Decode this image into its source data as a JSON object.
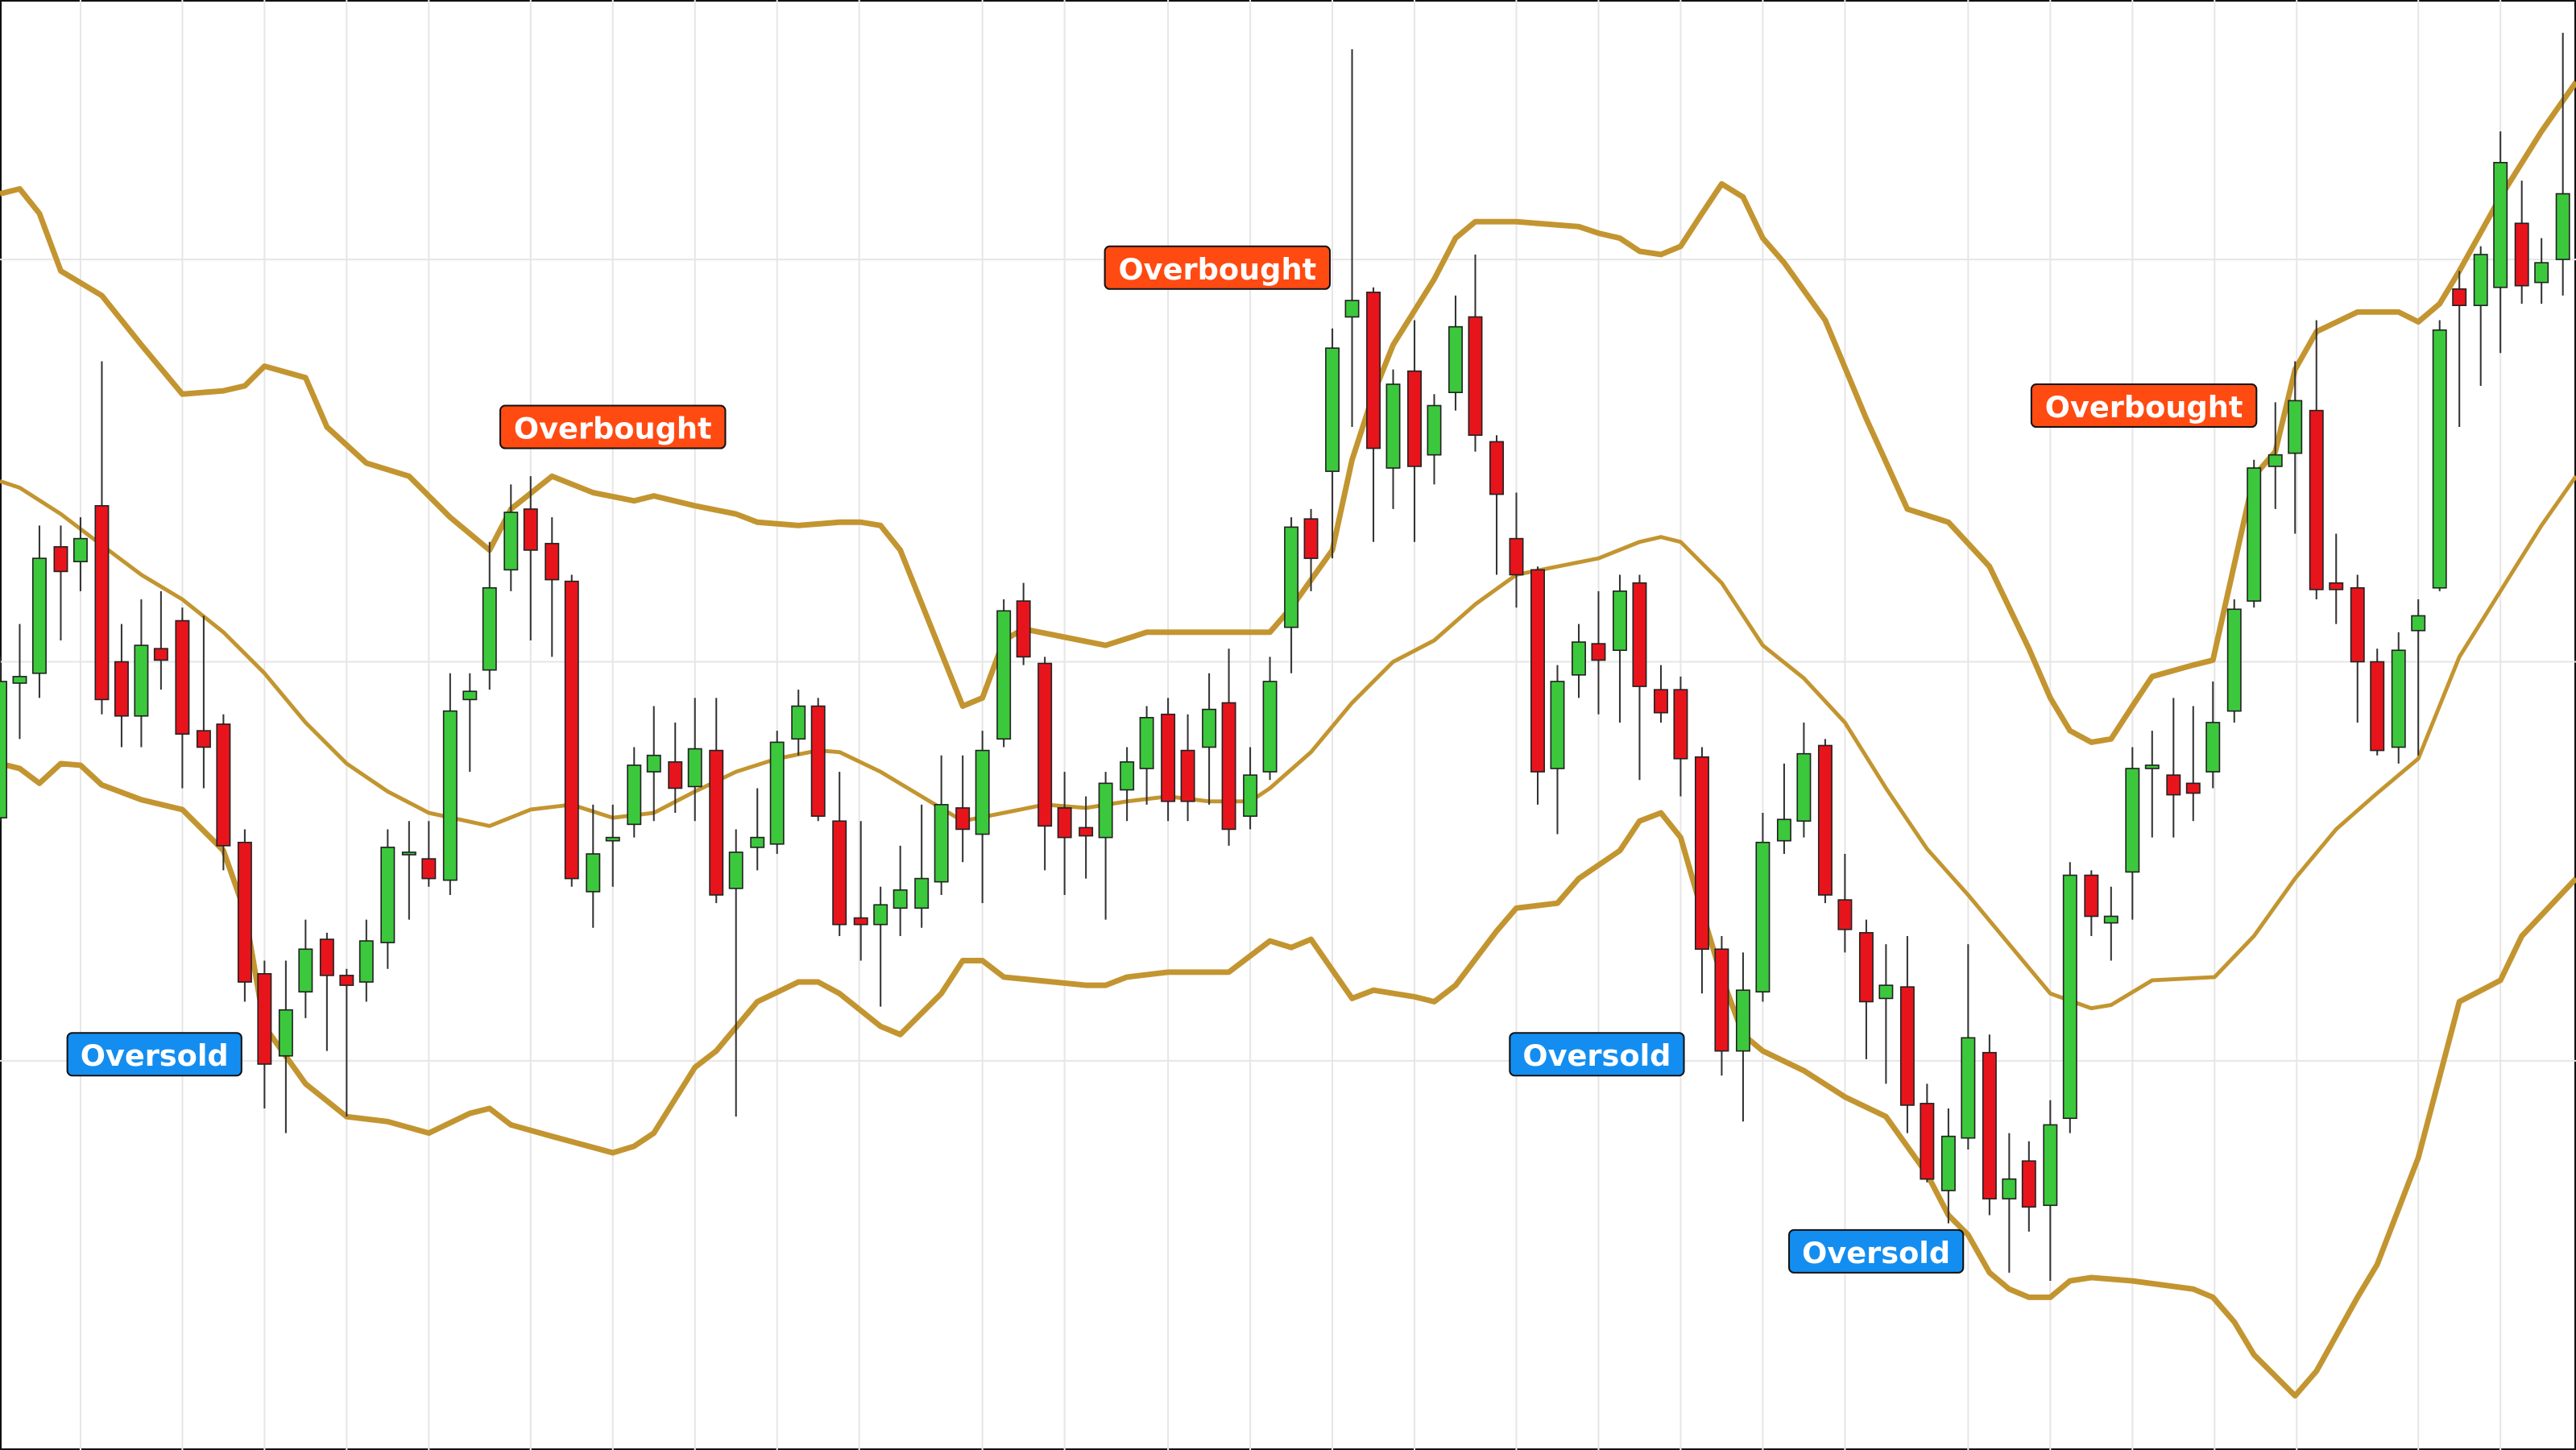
{
  "chart_data": {
    "type": "candlestick",
    "xlim": [
      0,
      1568
    ],
    "ylim": [
      0,
      883
    ],
    "grid": true,
    "xticks": [
      49,
      111,
      161,
      211,
      261,
      323,
      373,
      423,
      473,
      523,
      598,
      648,
      711,
      761,
      811,
      861,
      923,
      973,
      1023,
      1073,
      1123,
      1198,
      1248,
      1298,
      1348,
      1398,
      1472,
      1522
    ],
    "yticks": [
      237,
      480,
      725
    ],
    "up_color": "#3cc83c",
    "down_color": "#e8141c",
    "candles": {
      "x": [
        0,
        12,
        24,
        37,
        49,
        62,
        74,
        86,
        98,
        111,
        124,
        136,
        149,
        161,
        174,
        186,
        199,
        211,
        223,
        236,
        249,
        261,
        274,
        286,
        298,
        311,
        323,
        336,
        348,
        361,
        373,
        386,
        398,
        411,
        423,
        436,
        448,
        461,
        473,
        486,
        498,
        511,
        524,
        536,
        548,
        561,
        573,
        586,
        598,
        611,
        623,
        636,
        648,
        661,
        673,
        686,
        698,
        711,
        723,
        736,
        748,
        761,
        773,
        786,
        798,
        811,
        823,
        836,
        848,
        861,
        873,
        886,
        898,
        911,
        923,
        936,
        948,
        961,
        973,
        986,
        998,
        1011,
        1023,
        1036,
        1048,
        1061,
        1073,
        1086,
        1098,
        1111,
        1123,
        1136,
        1148,
        1161,
        1173,
        1186,
        1198,
        1211,
        1223,
        1235,
        1248,
        1260,
        1273,
        1285,
        1298,
        1310,
        1323,
        1335,
        1347,
        1360,
        1372,
        1385,
        1397,
        1410,
        1422,
        1435,
        1447,
        1460,
        1472,
        1485,
        1497,
        1510,
        1522,
        1535,
        1547,
        1560
      ],
      "open": [
        385,
        467,
        473,
        550,
        541,
        575,
        480,
        447,
        488,
        505,
        438,
        442,
        370,
        290,
        240,
        279,
        311,
        289,
        285,
        309,
        363,
        360,
        347,
        457,
        475,
        536,
        573,
        552,
        529,
        340,
        371,
        381,
        413,
        419,
        404,
        426,
        342,
        367,
        369,
        433,
        453,
        383,
        324,
        320,
        330,
        330,
        346,
        391,
        375,
        433,
        517,
        479,
        391,
        379,
        373,
        402,
        415,
        448,
        426,
        428,
        455,
        386,
        413,
        501,
        567,
        596,
        690,
        705,
        598,
        657,
        606,
        644,
        690,
        614,
        555,
        536,
        415,
        472,
        491,
        487,
        528,
        463,
        463,
        422,
        305,
        243,
        279,
        371,
        383,
        429,
        335,
        315,
        275,
        282,
        211,
        158,
        190,
        242,
        153,
        176,
        149,
        202,
        350,
        321,
        352,
        415,
        411,
        406,
        413,
        450,
        517,
        599,
        607,
        633,
        528,
        525,
        480,
        428,
        499,
        525,
        707,
        697,
        708,
        747,
        711,
        725
      ],
      "high": [
        483,
        503,
        563,
        563,
        568,
        663,
        503,
        518,
        523,
        513,
        508,
        448,
        378,
        298,
        298,
        323,
        315,
        293,
        323,
        378,
        383,
        383,
        473,
        473,
        553,
        588,
        593,
        568,
        533,
        393,
        393,
        428,
        453,
        443,
        458,
        458,
        378,
        403,
        438,
        463,
        458,
        413,
        383,
        343,
        368,
        393,
        423,
        423,
        438,
        518,
        528,
        483,
        413,
        398,
        413,
        428,
        453,
        458,
        448,
        473,
        488,
        428,
        483,
        568,
        573,
        683,
        853,
        708,
        658,
        688,
        643,
        703,
        728,
        618,
        583,
        538,
        478,
        503,
        523,
        533,
        533,
        478,
        471,
        428,
        313,
        303,
        388,
        418,
        443,
        433,
        363,
        323,
        308,
        313,
        223,
        208,
        308,
        253,
        193,
        188,
        213,
        358,
        353,
        343,
        428,
        438,
        458,
        453,
        468,
        518,
        603,
        638,
        663,
        688,
        558,
        533,
        488,
        498,
        518,
        688,
        718,
        733,
        803,
        773,
        738,
        863
      ],
      "low": [
        383,
        433,
        458,
        493,
        523,
        448,
        428,
        428,
        463,
        403,
        403,
        353,
        273,
        208,
        193,
        263,
        243,
        203,
        273,
        293,
        323,
        343,
        338,
        413,
        463,
        523,
        493,
        483,
        343,
        318,
        343,
        373,
        383,
        388,
        383,
        333,
        203,
        353,
        363,
        423,
        383,
        313,
        298,
        270,
        313,
        318,
        338,
        358,
        333,
        428,
        478,
        353,
        338,
        348,
        323,
        383,
        393,
        383,
        383,
        393,
        368,
        378,
        408,
        473,
        523,
        543,
        623,
        553,
        573,
        553,
        588,
        633,
        608,
        533,
        513,
        393,
        375,
        458,
        448,
        443,
        408,
        443,
        398,
        278,
        228,
        200,
        273,
        363,
        373,
        333,
        303,
        238,
        223,
        193,
        163,
        138,
        183,
        143,
        108,
        133,
        103,
        193,
        313,
        298,
        323,
        373,
        373,
        383,
        403,
        443,
        513,
        573,
        558,
        518,
        503,
        443,
        423,
        418,
        423,
        523,
        623,
        648,
        668,
        698,
        698,
        703
      ],
      "close": [
        468,
        471,
        543,
        535,
        555,
        457,
        447,
        490,
        481,
        436,
        428,
        368,
        285,
        235,
        268,
        305,
        289,
        283,
        310,
        367,
        364,
        348,
        450,
        462,
        525,
        571,
        548,
        530,
        348,
        363,
        373,
        417,
        423,
        403,
        427,
        338,
        364,
        373,
        431,
        453,
        386,
        320,
        320,
        332,
        341,
        348,
        393,
        378,
        426,
        511,
        483,
        380,
        373,
        374,
        406,
        419,
        446,
        395,
        395,
        451,
        378,
        411,
        468,
        562,
        543,
        671,
        700,
        610,
        649,
        599,
        636,
        684,
        618,
        582,
        533,
        413,
        468,
        492,
        481,
        523,
        465,
        449,
        421,
        305,
        243,
        280,
        370,
        384,
        424,
        338,
        317,
        273,
        283,
        210,
        165,
        191,
        251,
        153,
        165,
        148,
        198,
        350,
        325,
        325,
        415,
        417,
        399,
        400,
        443,
        512,
        598,
        606,
        639,
        524,
        524,
        480,
        426,
        487,
        508,
        682,
        697,
        728,
        784,
        709,
        723,
        765
      ]
    },
    "bands": [
      {
        "color": "#c39530",
        "x": [
          0,
          12,
          24,
          37,
          62,
          86,
          111,
          136,
          149,
          161,
          186,
          199,
          223,
          249,
          274,
          298,
          311,
          336,
          361,
          386,
          398,
          423,
          448,
          461,
          486,
          511,
          524,
          536,
          548,
          586,
          598,
          611,
          623,
          648,
          673,
          698,
          748,
          773,
          786,
          811,
          823,
          836,
          848,
          873,
          886,
          898,
          923,
          961,
          973,
          986,
          998,
          1011,
          1023,
          1036,
          1048,
          1061,
          1073,
          1086,
          1111,
          1136,
          1161,
          1186,
          1211,
          1235,
          1248,
          1260,
          1273,
          1285,
          1298,
          1310,
          1335,
          1347,
          1372,
          1385,
          1397,
          1410,
          1435,
          1460,
          1472,
          1485,
          1497,
          1522,
          1547,
          1568
        ],
        "values": [
          765,
          768,
          753,
          718,
          703,
          673,
          643,
          645,
          648,
          660,
          653,
          623,
          601,
          593,
          568,
          548,
          573,
          593,
          583,
          578,
          581,
          575,
          570,
          565,
          563,
          565,
          565,
          563,
          548,
          453,
          458,
          493,
          500,
          495,
          490,
          498,
          498,
          498,
          513,
          548,
          603,
          643,
          673,
          713,
          738,
          748,
          748,
          745,
          741,
          738,
          730,
          728,
          733,
          753,
          771,
          763,
          738,
          723,
          688,
          628,
          573,
          565,
          538,
          488,
          458,
          438,
          431,
          433,
          453,
          471,
          478,
          481,
          593,
          608,
          658,
          681,
          693,
          693,
          687,
          698,
          718,
          763,
          803,
          833
        ]
      },
      {
        "color": "#c39530",
        "x": [
          0,
          12,
          37,
          62,
          86,
          111,
          136,
          161,
          186,
          211,
          236,
          261,
          298,
          323,
          348,
          373,
          398,
          423,
          448,
          473,
          498,
          511,
          536,
          561,
          586,
          611,
          636,
          661,
          686,
          711,
          736,
          761,
          773,
          798,
          823,
          848,
          873,
          898,
          923,
          948,
          973,
          998,
          1011,
          1023,
          1048,
          1073,
          1098,
          1123,
          1148,
          1173,
          1198,
          1223,
          1248,
          1273,
          1285,
          1310,
          1348,
          1372,
          1397,
          1422,
          1447,
          1472,
          1497,
          1522,
          1547,
          1568
        ],
        "values": [
          590,
          586,
          570,
          551,
          533,
          518,
          498,
          473,
          443,
          418,
          401,
          388,
          380,
          390,
          393,
          385,
          388,
          401,
          413,
          421,
          426,
          425,
          413,
          398,
          383,
          388,
          393,
          391,
          395,
          398,
          395,
          395,
          403,
          425,
          455,
          480,
          493,
          515,
          533,
          538,
          543,
          553,
          556,
          553,
          528,
          490,
          470,
          443,
          403,
          366,
          338,
          308,
          278,
          269,
          271,
          286,
          288,
          313,
          348,
          378,
          400,
          421,
          483,
          523,
          563,
          593
        ]
      },
      {
        "color": "#c39530",
        "x": [
          0,
          12,
          24,
          37,
          49,
          62,
          86,
          111,
          136,
          149,
          161,
          186,
          211,
          236,
          261,
          286,
          298,
          311,
          336,
          373,
          386,
          398,
          423,
          436,
          461,
          486,
          498,
          511,
          536,
          548,
          573,
          586,
          598,
          611,
          661,
          673,
          686,
          711,
          748,
          773,
          786,
          798,
          823,
          836,
          861,
          873,
          886,
          911,
          923,
          948,
          961,
          986,
          998,
          1011,
          1023,
          1036,
          1048,
          1061,
          1073,
          1098,
          1123,
          1148,
          1173,
          1186,
          1198,
          1211,
          1223,
          1235,
          1248,
          1260,
          1273,
          1298,
          1335,
          1347,
          1360,
          1372,
          1397,
          1410,
          1435,
          1447,
          1472,
          1497,
          1522,
          1535,
          1568
        ],
        "values": [
          418,
          415,
          406,
          418,
          417,
          405,
          396,
          390,
          365,
          328,
          258,
          223,
          203,
          200,
          193,
          205,
          208,
          198,
          191,
          181,
          185,
          193,
          233,
          243,
          273,
          285,
          285,
          278,
          258,
          253,
          278,
          298,
          298,
          288,
          283,
          283,
          288,
          291,
          291,
          310,
          306,
          311,
          275,
          280,
          276,
          273,
          283,
          316,
          330,
          333,
          348,
          365,
          383,
          388,
          373,
          328,
          288,
          253,
          243,
          231,
          215,
          203,
          168,
          143,
          131,
          108,
          98,
          93,
          93,
          103,
          105,
          103,
          98,
          93,
          78,
          58,
          33,
          48,
          93,
          113,
          178,
          273,
          286,
          313,
          348
        ]
      }
    ],
    "annotations": [
      {
        "text": "Overbought",
        "color": "#ff4a12"
      },
      {
        "text": "Overbought",
        "color": "#ff4a12"
      },
      {
        "text": "Overbought",
        "color": "#ff4a12"
      },
      {
        "text": "Oversold",
        "color": "#138ef0"
      },
      {
        "text": "Oversold",
        "color": "#138ef0"
      },
      {
        "text": "Oversold",
        "color": "#138ef0"
      }
    ]
  }
}
